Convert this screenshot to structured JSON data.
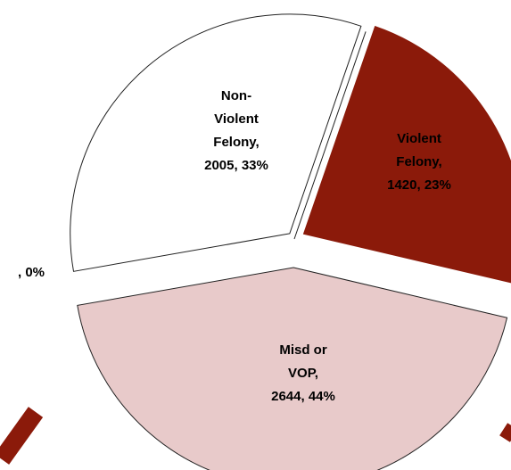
{
  "chart_data": {
    "type": "pie",
    "categories": [
      "Violent Felony",
      "Misd or VOP",
      "Non-Violent Felony",
      null
    ],
    "values": [
      1420,
      2644,
      2005,
      0
    ],
    "colors": [
      "#8b1a0a",
      "#e8caca",
      "#ffffff",
      "#ffffff"
    ],
    "data_labels": [
      [
        "Violent",
        "Felony,",
        "1420, 23%"
      ],
      [
        "Misd or",
        "VOP,",
        "2644, 44%"
      ],
      [
        "Non-",
        "Violent",
        "Felony,",
        "2005, 33%"
      ],
      [
        ", 0%"
      ]
    ]
  }
}
